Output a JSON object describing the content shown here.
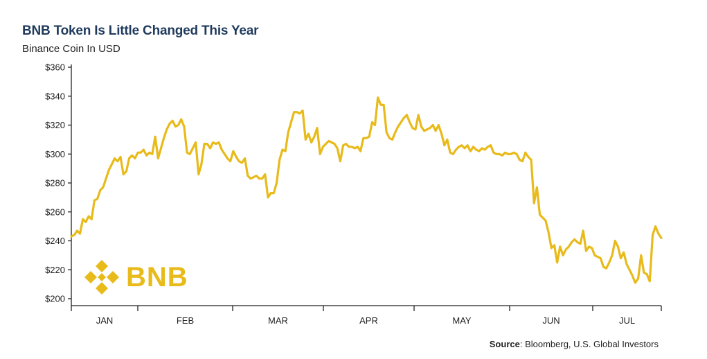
{
  "header": {
    "title": "BNB Token Is Little Changed This Year",
    "subtitle": "Binance Coin In USD"
  },
  "logo": {
    "text": "BNB",
    "icon": "binance-diamond-icon",
    "color": "#e8ba1a"
  },
  "source": {
    "label": "Source",
    "text": ": Bloomberg, U.S. Global Investors"
  },
  "colors": {
    "line": "#e8ba1a",
    "axis": "#222222",
    "title": "#1f3a5c"
  },
  "chart_data": {
    "type": "line",
    "title": "BNB Token Is Little Changed This Year",
    "subtitle": "Binance Coin In USD",
    "xlabel": "",
    "ylabel": "",
    "ylim": [
      200,
      360
    ],
    "yticks": [
      "$200",
      "$220",
      "$240",
      "$260",
      "$280",
      "$300",
      "$320",
      "$340",
      "$360"
    ],
    "ytick_values": [
      200,
      220,
      240,
      260,
      280,
      300,
      320,
      340,
      360
    ],
    "month_labels": [
      "JAN",
      "FEB",
      "MAR",
      "APR",
      "MAY",
      "JUN",
      "JUL"
    ],
    "grid": false,
    "series": [
      {
        "values": [
          243,
          244,
          247,
          245,
          255,
          253,
          257,
          255,
          268,
          269,
          275,
          277,
          283,
          289,
          293,
          297,
          295,
          298,
          286,
          288,
          297,
          299,
          297,
          301,
          301,
          303,
          299,
          301,
          300,
          312,
          297,
          304,
          311,
          317,
          321,
          323,
          319,
          320,
          324,
          319,
          301,
          300,
          304,
          308,
          286,
          293,
          307,
          307,
          304,
          308,
          307,
          308,
          303,
          300,
          297,
          295,
          302,
          298,
          295,
          294,
          297,
          285,
          283,
          284,
          285,
          283,
          283,
          286,
          270,
          273,
          273,
          280,
          296,
          303,
          302,
          315,
          322,
          329,
          329,
          328,
          330,
          310,
          314,
          308,
          312,
          318,
          300,
          305,
          307,
          309,
          308,
          307,
          304,
          295,
          306,
          307,
          305,
          305,
          304,
          305,
          302,
          311,
          311,
          312,
          322,
          320,
          339,
          334,
          334,
          315,
          311,
          310,
          315,
          319,
          322,
          325,
          327,
          322,
          318,
          317,
          327,
          319,
          316,
          317,
          318,
          320,
          316,
          320,
          314,
          306,
          310,
          301,
          300,
          303,
          305,
          306,
          304,
          306,
          302,
          305,
          303,
          302,
          304,
          303,
          305,
          306,
          301,
          300,
          300,
          299,
          301,
          300,
          300,
          301,
          300,
          296,
          295,
          301,
          298,
          296,
          266,
          277,
          258,
          256,
          254,
          246,
          235,
          237,
          225,
          236,
          230,
          234,
          236,
          239,
          241,
          239,
          238,
          247,
          233,
          236,
          235,
          230,
          229,
          228,
          222,
          221,
          225,
          230,
          240,
          236,
          228,
          232,
          224,
          220,
          216,
          211,
          214,
          230,
          218,
          217,
          212,
          244,
          250,
          245,
          242
        ]
      }
    ]
  }
}
